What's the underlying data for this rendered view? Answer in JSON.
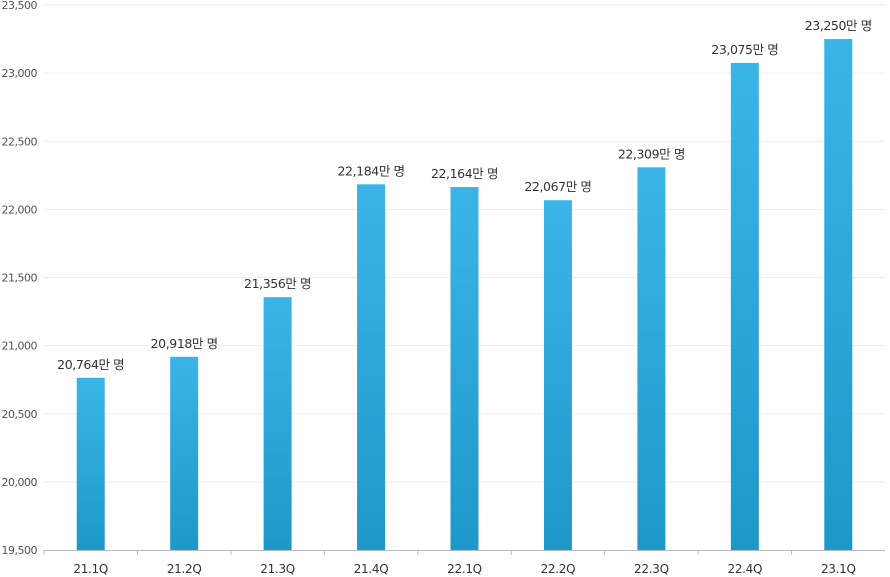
{
  "chart_data": {
    "type": "bar",
    "title": "",
    "xlabel": "",
    "ylabel": "",
    "categories": [
      "21.1Q",
      "21.2Q",
      "21.3Q",
      "21.4Q",
      "22.1Q",
      "22.2Q",
      "22.3Q",
      "22.4Q",
      "23.1Q"
    ],
    "values": [
      20764,
      20918,
      21356,
      22184,
      22164,
      22067,
      22309,
      23075,
      23250
    ],
    "data_labels": [
      "20,764만 명",
      "20,918만 명",
      "21,356만 명",
      "22,184만 명",
      "22,164만 명",
      "22,067만 명",
      "22,309만 명",
      "23,075만 명",
      "23,250만 명"
    ],
    "ylim": [
      19500,
      23500
    ],
    "yticks": [
      19500,
      20000,
      20500,
      21000,
      21500,
      22000,
      22500,
      23000,
      23500
    ],
    "ytick_labels": [
      "19,500",
      "20,000",
      "20,500",
      "21,000",
      "21,500",
      "22,000",
      "22,500",
      "23,000",
      "23,500"
    ],
    "grid": true,
    "legend": "none",
    "colors": {
      "bar_top": "#3bb5e8",
      "bar_bottom": "#1e98c9",
      "grid": "#eeeeee",
      "axis": "#bbbbbb",
      "text": "#333333"
    }
  }
}
